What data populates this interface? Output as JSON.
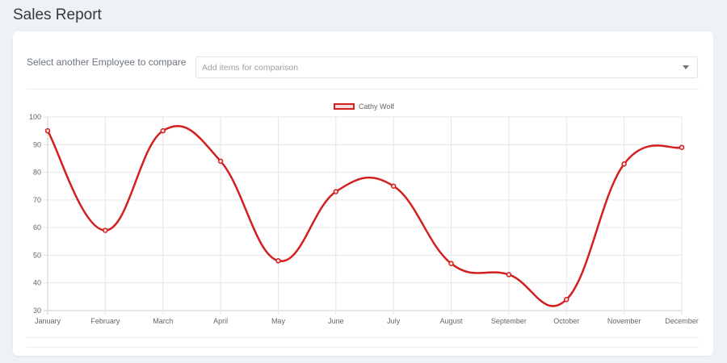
{
  "page": {
    "title": "Sales Report"
  },
  "compare": {
    "label": "Select another Employee to compare",
    "placeholder": "Add items for comparison"
  },
  "colors": {
    "line": "#d41f1f",
    "fill": "#f3dcdc",
    "grid": "#e6e6e6",
    "background": "#eef1f5"
  },
  "chart_data": {
    "type": "line",
    "categories": [
      "January",
      "February",
      "March",
      "April",
      "May",
      "June",
      "July",
      "August",
      "September",
      "October",
      "November",
      "December"
    ],
    "series": [
      {
        "name": "Cathy Wolf",
        "values": [
          95,
          59,
          95,
          84,
          48,
          73,
          75,
          47,
          43,
          34,
          83,
          89
        ]
      }
    ],
    "ylim": [
      30,
      100
    ],
    "yticks": [
      30,
      40,
      50,
      60,
      70,
      80,
      90,
      100
    ],
    "grid": true,
    "legend": "top-center",
    "smooth": true
  }
}
